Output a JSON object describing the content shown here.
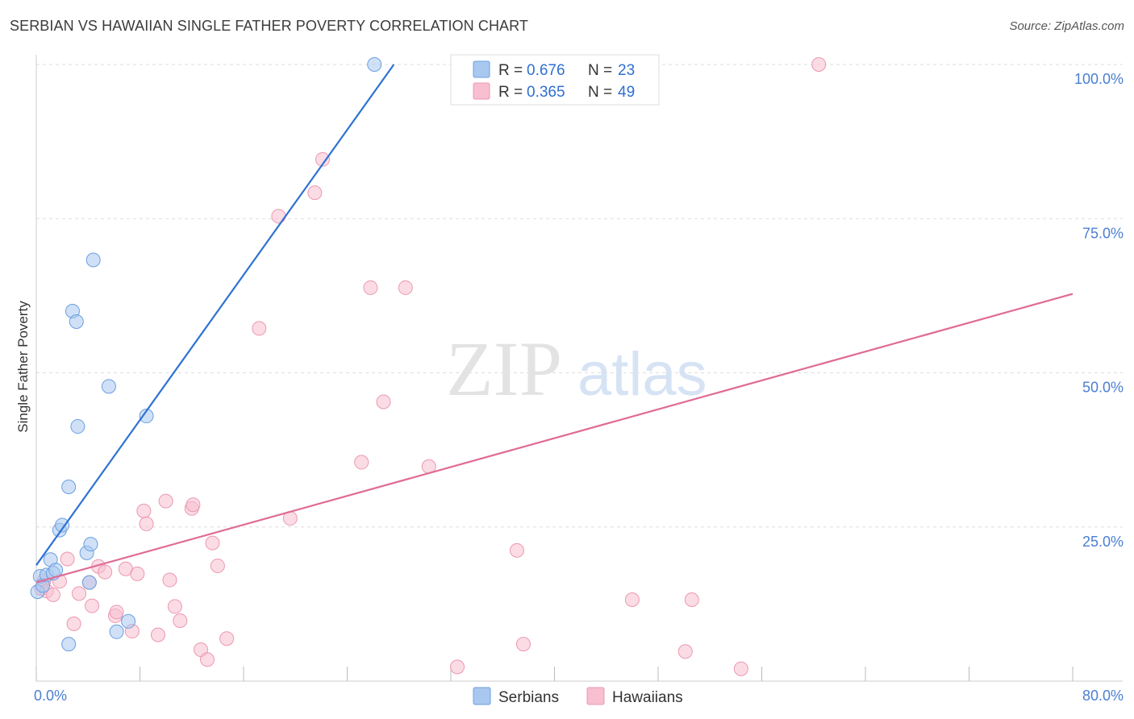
{
  "title": "SERBIAN VS HAWAIIAN SINGLE FATHER POVERTY CORRELATION CHART",
  "source": "Source: ZipAtlas.com",
  "watermark": {
    "zip": "ZIP",
    "atlas": "atlas"
  },
  "colors": {
    "serbian_fill": "#a9c8f0",
    "serbian_stroke": "#6a9fe0",
    "serbian_line": "#2f72d2",
    "hawaiian_fill": "#f7bfd0",
    "hawaiian_stroke": "#ec97b0",
    "hawaiian_line": "#e06b96",
    "tick": "#4a7fd1",
    "grid": "#dddddd"
  },
  "legend": {
    "r_label": "R =",
    "n_label": "N =",
    "serbians": {
      "r": "0.676",
      "n": "23"
    },
    "hawaiians": {
      "r": "0.365",
      "n": "49"
    }
  },
  "bottom_legend": {
    "serbians": "Serbians",
    "hawaiians": "Hawaiians"
  },
  "chart_data": {
    "type": "scatter",
    "title": "SERBIAN VS HAWAIIAN SINGLE FATHER POVERTY CORRELATION CHART",
    "xlabel": "",
    "ylabel": "Single Father Poverty",
    "xlim": [
      0,
      80
    ],
    "ylim": [
      0,
      100
    ],
    "x_tick_labels": {
      "min": "0.0%",
      "max": "80.0%"
    },
    "y_ticks": [
      {
        "value": 25,
        "label": "25.0%"
      },
      {
        "value": 50,
        "label": "50.0%"
      },
      {
        "value": 75,
        "label": "75.0%"
      },
      {
        "value": 100,
        "label": "100.0%"
      }
    ],
    "series": [
      {
        "name": "Serbians",
        "points": [
          [
            0.1,
            14.5
          ],
          [
            0.3,
            17.0
          ],
          [
            0.5,
            15.5
          ],
          [
            0.8,
            17.2
          ],
          [
            1.1,
            19.7
          ],
          [
            1.3,
            17.5
          ],
          [
            1.5,
            18.0
          ],
          [
            1.8,
            24.5
          ],
          [
            2.0,
            25.3
          ],
          [
            2.5,
            31.5
          ],
          [
            2.5,
            6.0
          ],
          [
            2.8,
            60.0
          ],
          [
            3.1,
            58.3
          ],
          [
            3.2,
            41.3
          ],
          [
            3.9,
            20.8
          ],
          [
            4.1,
            16.0
          ],
          [
            4.2,
            22.2
          ],
          [
            4.4,
            68.3
          ],
          [
            5.6,
            47.8
          ],
          [
            6.2,
            8.0
          ],
          [
            7.1,
            9.7
          ],
          [
            8.5,
            43.0
          ],
          [
            26.1,
            100.0
          ]
        ],
        "trend": {
          "x1": 0.0,
          "y1": 18.8,
          "x2": 27.6,
          "y2": 100.0
        }
      },
      {
        "name": "Hawaiians",
        "points": [
          [
            0.4,
            15.0
          ],
          [
            0.6,
            16.3
          ],
          [
            0.8,
            14.6
          ],
          [
            1.3,
            14.0
          ],
          [
            1.8,
            16.2
          ],
          [
            2.4,
            19.8
          ],
          [
            2.9,
            9.3
          ],
          [
            3.3,
            14.2
          ],
          [
            4.1,
            16.0
          ],
          [
            4.3,
            12.2
          ],
          [
            4.8,
            18.6
          ],
          [
            5.3,
            17.7
          ],
          [
            6.1,
            10.6
          ],
          [
            6.2,
            11.2
          ],
          [
            6.9,
            18.2
          ],
          [
            7.4,
            8.1
          ],
          [
            7.8,
            17.4
          ],
          [
            8.3,
            27.6
          ],
          [
            8.5,
            25.5
          ],
          [
            9.4,
            7.5
          ],
          [
            10.0,
            29.2
          ],
          [
            10.3,
            16.4
          ],
          [
            10.7,
            12.1
          ],
          [
            11.1,
            9.8
          ],
          [
            12.0,
            28.0
          ],
          [
            12.1,
            28.6
          ],
          [
            12.7,
            5.1
          ],
          [
            13.2,
            3.5
          ],
          [
            13.6,
            22.4
          ],
          [
            14.0,
            18.7
          ],
          [
            14.7,
            6.9
          ],
          [
            17.2,
            57.2
          ],
          [
            18.7,
            75.4
          ],
          [
            19.6,
            26.4
          ],
          [
            21.5,
            79.2
          ],
          [
            22.1,
            84.6
          ],
          [
            25.1,
            35.5
          ],
          [
            25.8,
            63.8
          ],
          [
            26.8,
            45.3
          ],
          [
            28.5,
            63.8
          ],
          [
            30.3,
            34.8
          ],
          [
            32.5,
            2.3
          ],
          [
            37.1,
            21.2
          ],
          [
            37.6,
            6.0
          ],
          [
            46.0,
            13.2
          ],
          [
            50.1,
            4.8
          ],
          [
            50.6,
            13.2
          ],
          [
            54.4,
            2.0
          ],
          [
            60.4,
            100.0
          ]
        ],
        "trend": {
          "x1": 0.0,
          "y1": 16.0,
          "x2": 80.0,
          "y2": 62.8
        }
      }
    ]
  }
}
